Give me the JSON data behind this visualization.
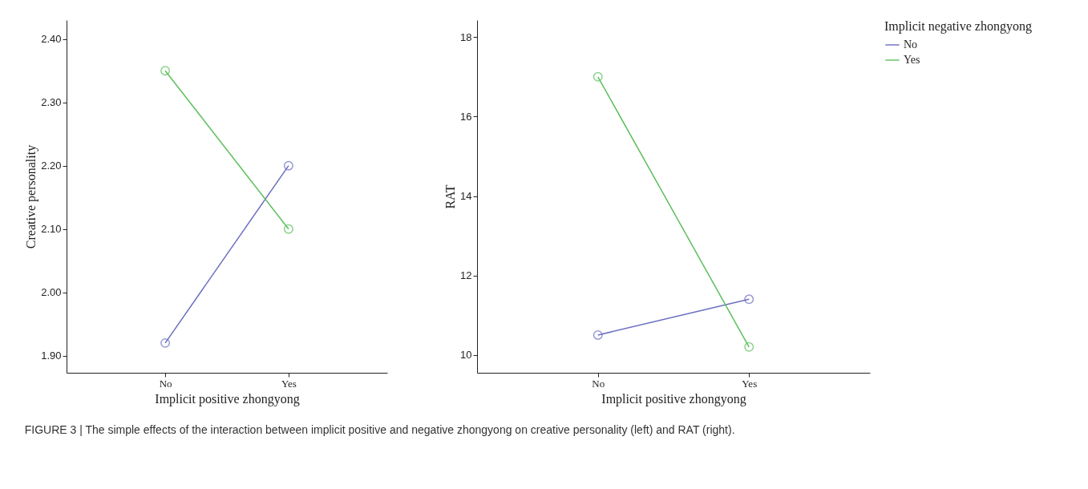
{
  "chart_data": [
    {
      "type": "line",
      "categories": [
        "No",
        "Yes"
      ],
      "xlabel": "Implicit positive zhongyong",
      "ylabel": "Creative personality",
      "marker": "circle",
      "grid": false,
      "legend": false,
      "series": [
        {
          "color": "#6b6fc0",
          "values": [
            1.92,
            2.2
          ]
        },
        {
          "color": "#5cbf5c",
          "values": [
            2.35,
            2.1
          ]
        }
      ],
      "ylim": [
        1.873,
        2.43
      ],
      "yticks": [
        {
          "value": 1.9,
          "label": "1.90"
        },
        {
          "value": 2.0,
          "label": "2.00"
        },
        {
          "value": 2.1,
          "label": "2.10"
        },
        {
          "value": 2.2,
          "label": "2.20"
        },
        {
          "value": 2.3,
          "label": "2.30"
        },
        {
          "value": 2.4,
          "label": "2.40"
        }
      ],
      "annotations": [
        "FIGURE 3 | The simple effects of the interaction between implicit positive and negative zhongyong on creative personality (left) and RAT (right)."
      ]
    },
    {
      "type": "line",
      "categories": [
        "No",
        "Yes"
      ],
      "xlabel": "Implicit positive zhongyong",
      "ylabel": "RAT",
      "marker": "circle",
      "grid": false,
      "legend": "top right",
      "legend_title": "Implicit negative zhongyong",
      "series": [
        {
          "name": "No",
          "color": "#6b6fc0",
          "values": [
            10.5,
            11.4
          ]
        },
        {
          "name": "Yes",
          "color": "#5cbf5c",
          "values": [
            17.0,
            10.2
          ]
        }
      ],
      "ylim": [
        9.55,
        18.43
      ],
      "yticks": [
        10,
        12,
        14,
        16,
        18
      ]
    }
  ]
}
